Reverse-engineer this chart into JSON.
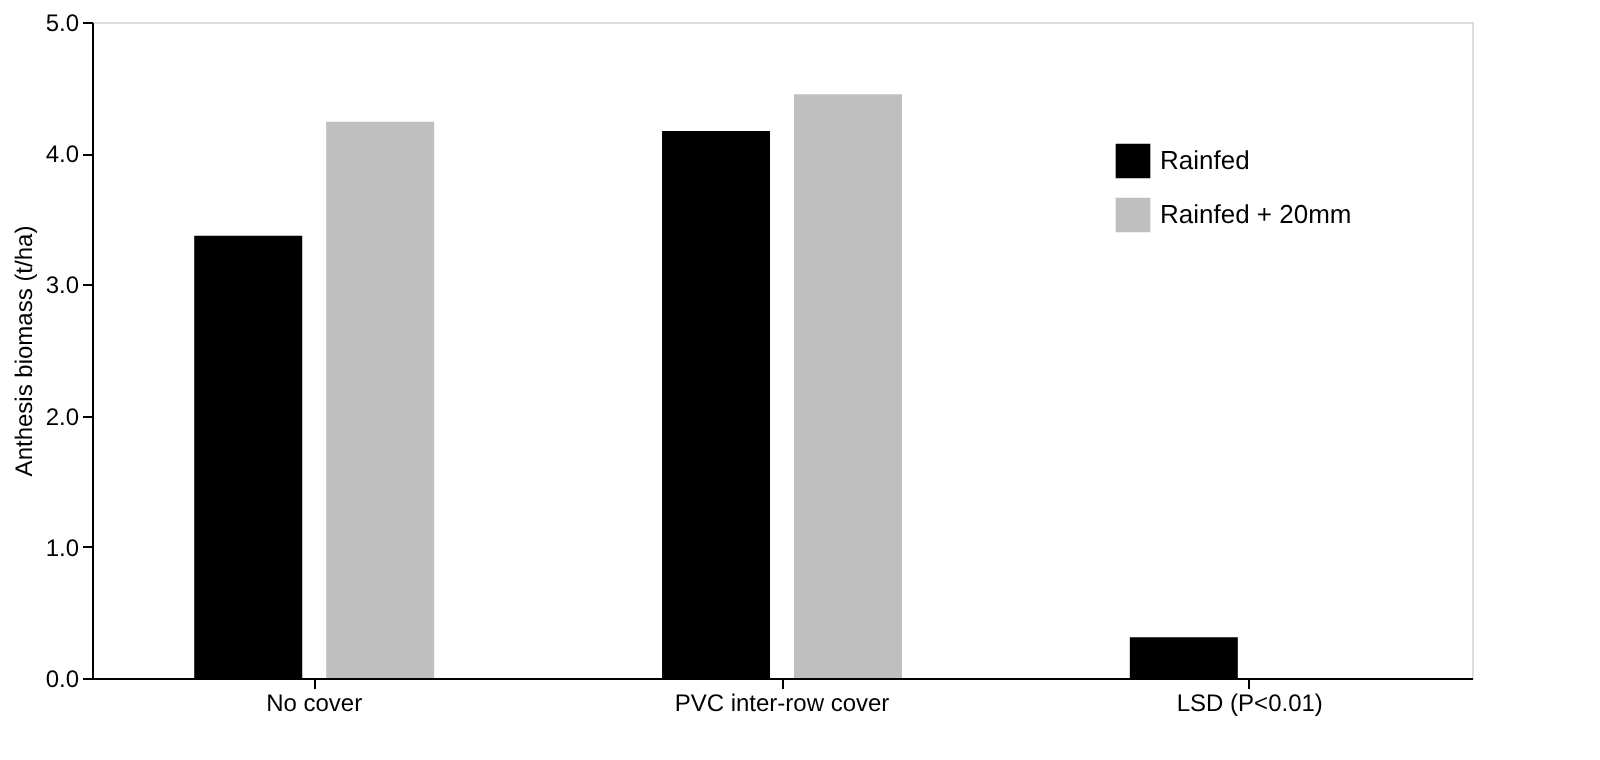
{
  "chart_data": {
    "type": "bar",
    "ylabel": "Anthesis biomass (t/ha)",
    "categories": [
      "No cover",
      "PVC inter-row cover",
      "LSD (P<0.01)"
    ],
    "series": [
      {
        "name": "Rainfed",
        "color": "#000000",
        "values": [
          3.37,
          4.17,
          0.31
        ]
      },
      {
        "name": "Rainfed + 20mm",
        "color": "#bfbfbf",
        "values": [
          4.24,
          4.45,
          null
        ]
      }
    ],
    "ylim": [
      0,
      5
    ],
    "yticks": [
      {
        "value": 0,
        "label": "0.0"
      },
      {
        "value": 1,
        "label": "1.0"
      },
      {
        "value": 2,
        "label": "2.0"
      },
      {
        "value": 3,
        "label": "3.0"
      },
      {
        "value": 4,
        "label": "4.0"
      },
      {
        "value": 5,
        "label": "5.0"
      }
    ],
    "grid": false,
    "legend": "top right"
  }
}
